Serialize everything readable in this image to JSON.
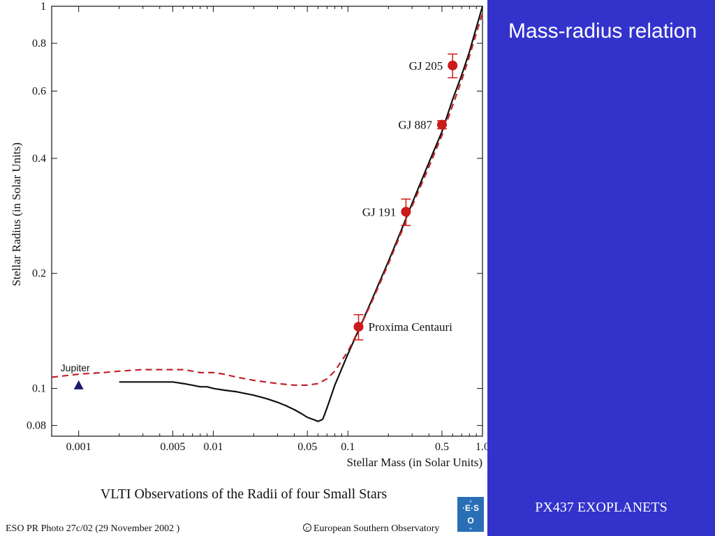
{
  "slide": {
    "title": "Mass-radius relation",
    "footer": "PX437 EXOPLANETS",
    "panel_color": "#3333cc"
  },
  "chart_data": {
    "type": "line",
    "title": "VLTI Observations of the Radii of four Small Stars",
    "xlabel": "Stellar Mass (in Solar Units)",
    "ylabel": "Stellar Radius (in Solar Units)",
    "xscale": "log",
    "yscale": "log",
    "xlim": [
      0.00063,
      1.0
    ],
    "ylim": [
      0.075,
      1.0
    ],
    "grid": false,
    "x_ticks": [
      {
        "value": 0.001,
        "label": "0.001"
      },
      {
        "value": 0.005,
        "label": "0.005"
      },
      {
        "value": 0.01,
        "label": "0.01"
      },
      {
        "value": 0.05,
        "label": "0.05"
      },
      {
        "value": 0.1,
        "label": "0.1"
      },
      {
        "value": 0.5,
        "label": "0.5"
      },
      {
        "value": 1.0,
        "label": "1.0"
      }
    ],
    "x_minor_ticks": [
      0.002,
      0.003,
      0.004,
      0.006,
      0.007,
      0.008,
      0.009,
      0.02,
      0.03,
      0.04,
      0.06,
      0.07,
      0.08,
      0.09,
      0.2,
      0.3,
      0.4,
      0.6,
      0.7,
      0.8,
      0.9
    ],
    "y_ticks": [
      {
        "value": 0.08,
        "label": "0.08"
      },
      {
        "value": 0.1,
        "label": "0.1"
      },
      {
        "value": 0.2,
        "label": "0.2"
      },
      {
        "value": 0.4,
        "label": "0.4"
      },
      {
        "value": 0.6,
        "label": "0.6"
      },
      {
        "value": 0.8,
        "label": "0.8"
      },
      {
        "value": 1.0,
        "label": "1"
      }
    ],
    "series": [
      {
        "style": "solid",
        "color": "#111111",
        "x": [
          0.002,
          0.003,
          0.004,
          0.005,
          0.006,
          0.007,
          0.008,
          0.009,
          0.01,
          0.012,
          0.015,
          0.02,
          0.025,
          0.03,
          0.035,
          0.04,
          0.045,
          0.05,
          0.055,
          0.06,
          0.065
        ],
        "y": [
          0.104,
          0.104,
          0.104,
          0.104,
          0.103,
          0.102,
          0.101,
          0.101,
          0.1,
          0.099,
          0.098,
          0.096,
          0.094,
          0.092,
          0.09,
          0.088,
          0.086,
          0.084,
          0.083,
          0.082,
          0.083
        ]
      },
      {
        "style": "solid",
        "color": "#111111",
        "x": [
          0.065,
          0.07,
          0.08,
          0.1,
          0.12,
          0.15,
          0.2,
          0.25,
          0.3,
          0.4,
          0.5,
          0.6,
          0.7,
          0.8,
          0.9,
          1.0
        ],
        "y": [
          0.083,
          0.089,
          0.102,
          0.123,
          0.142,
          0.17,
          0.215,
          0.26,
          0.305,
          0.39,
          0.47,
          0.57,
          0.66,
          0.76,
          0.88,
          1.0
        ]
      },
      {
        "style": "dashed",
        "color": "#c0232b",
        "x": [
          0.00063,
          0.001,
          0.0015,
          0.002,
          0.003,
          0.004,
          0.005,
          0.006,
          0.007,
          0.008,
          0.01,
          0.012,
          0.015,
          0.02,
          0.03,
          0.04,
          0.05,
          0.06,
          0.07,
          0.08,
          0.1,
          0.12,
          0.15,
          0.2,
          0.3,
          0.4,
          0.5,
          0.6,
          0.7,
          0.8,
          0.9,
          1.0
        ],
        "y": [
          0.107,
          0.109,
          0.11,
          0.111,
          0.112,
          0.112,
          0.112,
          0.112,
          0.111,
          0.11,
          0.11,
          0.109,
          0.107,
          0.105,
          0.103,
          0.102,
          0.102,
          0.103,
          0.106,
          0.111,
          0.125,
          0.142,
          0.168,
          0.212,
          0.3,
          0.38,
          0.46,
          0.55,
          0.64,
          0.74,
          0.85,
          0.96
        ]
      }
    ],
    "points": [
      {
        "label": "GJ 205",
        "x": 0.6,
        "y": 0.7,
        "yerr": 0.05,
        "color": "#cc1a1a"
      },
      {
        "label": "GJ 887",
        "x": 0.5,
        "y": 0.49,
        "yerr": 0.012,
        "color": "#cc1a1a"
      },
      {
        "label": "GJ 191",
        "x": 0.27,
        "y": 0.29,
        "yerr": 0.023,
        "color": "#cc1a1a"
      },
      {
        "label": "Proxima Centauri",
        "x": 0.12,
        "y": 0.145,
        "yerr": 0.011,
        "color": "#cc1a1a"
      }
    ],
    "markers": [
      {
        "label": "Jupiter",
        "x": 0.001,
        "y": 0.102,
        "shape": "triangle",
        "color": "#1a1a6e"
      }
    ],
    "credits": {
      "left": "ESO PR Photo 27c/02 (29 November 2002 )",
      "right": "European Southern Observatory"
    }
  }
}
